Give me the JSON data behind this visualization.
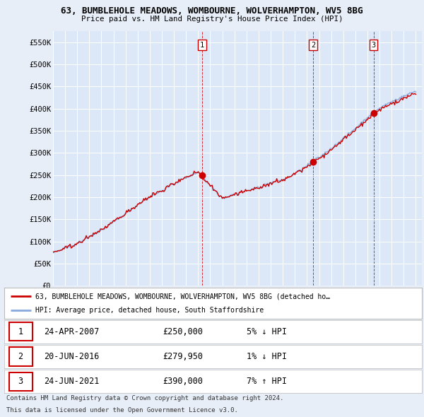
{
  "title": "63, BUMBLEHOLE MEADOWS, WOMBOURNE, WOLVERHAMPTON, WV5 8BG",
  "subtitle": "Price paid vs. HM Land Registry's House Price Index (HPI)",
  "background_color": "#e8eef8",
  "plot_bg_color": "#dce8f8",
  "sale_color": "#cc0000",
  "hpi_color": "#88aadd",
  "ylim": [
    0,
    575000
  ],
  "yticks": [
    0,
    50000,
    100000,
    150000,
    200000,
    250000,
    300000,
    350000,
    400000,
    450000,
    500000,
    550000
  ],
  "ytick_labels": [
    "£0",
    "£50K",
    "£100K",
    "£150K",
    "£200K",
    "£250K",
    "£300K",
    "£350K",
    "£400K",
    "£450K",
    "£500K",
    "£550K"
  ],
  "legend_line1": "63, BUMBLEHOLE MEADOWS, WOMBOURNE, WOLVERHAMPTON, WV5 8BG (detached ho…",
  "legend_line2": "HPI: Average price, detached house, South Staffordshire",
  "table_data": [
    {
      "num": "1",
      "date": "24-APR-2007",
      "price": "£250,000",
      "hpi": "5% ↓ HPI"
    },
    {
      "num": "2",
      "date": "20-JUN-2016",
      "price": "£279,950",
      "hpi": "1% ↓ HPI"
    },
    {
      "num": "3",
      "date": "24-JUN-2021",
      "price": "£390,000",
      "hpi": "7% ↑ HPI"
    }
  ],
  "footer1": "Contains HM Land Registry data © Crown copyright and database right 2024.",
  "footer2": "This data is licensed under the Open Government Licence v3.0.",
  "year_start": 1995,
  "year_end": 2025
}
